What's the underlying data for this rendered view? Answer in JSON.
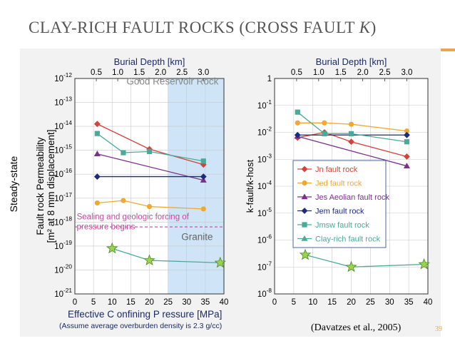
{
  "slide": {
    "title": "CLAY-RICH FAULT ROCKS (CROSS FAULT ",
    "title_italic": "K",
    "title_end": ")",
    "side_label": "Steady-state",
    "citation": "(Davatzes et al., 2005)",
    "slide_number": "39"
  },
  "chart_data": [
    {
      "type": "line",
      "title": "",
      "xlabel": "Effective C onfining P ressure [MPa]",
      "xlabel_note": "(Assume average overburden density is 2.3 g/cc)",
      "ylabel_line1": "Fault rock Permeability",
      "ylabel_line2": "[m² at 8 mm displacement]",
      "top_axis_label": "Burial Depth [km]",
      "top_ticks": [
        "0.5",
        "1.0",
        "1.5",
        "2.0",
        "2.5",
        "3.0"
      ],
      "top_tick_values": [
        0.5,
        1.0,
        1.5,
        2.0,
        2.5,
        3.0
      ],
      "top_axis_mpa_per_km": 11.5,
      "xlim": [
        0,
        40
      ],
      "x_ticks": [
        "0",
        "5",
        "10",
        "15",
        "20",
        "25",
        "30",
        "35",
        "40"
      ],
      "ylim_exp": [
        -21,
        -12
      ],
      "y_ticks_exp": [
        "-12",
        "-13",
        "-14",
        "-15",
        "-16",
        "-17",
        "-18",
        "-19",
        "-20",
        "-21"
      ],
      "scale": "log",
      "shaded_region": {
        "x_from": 25,
        "x_to": 40,
        "color": "#cfe5f7"
      },
      "annotations": [
        {
          "text": "Good Reservoir Rock",
          "color": "#888888"
        },
        {
          "text": "Sealing and geologic forcing of",
          "color": "#c04c9c"
        },
        {
          "text": "pressure begins",
          "color": "#c04c9c"
        },
        {
          "text": "Granite",
          "color": "#666666"
        }
      ],
      "sealing_line_exp": -18.2,
      "series": [
        {
          "name": "Jn",
          "color": "#d9403a",
          "marker": "diamond",
          "x": [
            6,
            20,
            34.5
          ],
          "y_exp": [
            -13.9,
            -14.95,
            -15.6
          ]
        },
        {
          "name": "Jed",
          "color": "#f0a830",
          "marker": "circle",
          "x": [
            6,
            13,
            20,
            34.5
          ],
          "y_exp": [
            -17.2,
            -17.1,
            -17.35,
            -17.45
          ]
        },
        {
          "name": "Jes Aeolian",
          "color": "#7c2f8c",
          "marker": "triangle",
          "x": [
            6,
            34.5
          ],
          "y_exp": [
            -15.15,
            -16.25
          ]
        },
        {
          "name": "Jem",
          "color": "#1f2a7a",
          "marker": "diamond",
          "x": [
            6,
            34.5
          ],
          "y_exp": [
            -16.1,
            -16.1
          ]
        },
        {
          "name": "Jmsw",
          "color": "#4aaa98",
          "marker": "square",
          "x": [
            6,
            13,
            20,
            34.5
          ],
          "y_exp": [
            -14.3,
            -15.1,
            -15.05,
            -15.45
          ]
        },
        {
          "name": "Clay-rich",
          "color": "#4aaa98",
          "marker": "star",
          "marker_color": "#9bd44a",
          "x": [
            10,
            20,
            39
          ],
          "y_exp": [
            -19.1,
            -19.6,
            -19.7
          ]
        }
      ]
    },
    {
      "type": "line",
      "title": "",
      "xlabel": "",
      "ylabel": "k-fault/k-host",
      "top_axis_label": "Burial Depth [km]",
      "top_ticks": [
        "0.5",
        "1.0",
        "1.5",
        "2.0",
        "2.5",
        "3.0"
      ],
      "top_tick_values": [
        0.5,
        1.0,
        1.5,
        2.0,
        2.5,
        3.0
      ],
      "top_axis_mpa_per_km": 11.5,
      "xlim": [
        0,
        40
      ],
      "x_ticks": [
        "0",
        "5",
        "10",
        "15",
        "20",
        "25",
        "30",
        "35",
        "40"
      ],
      "ylim_exp": [
        -8,
        0
      ],
      "y_tick_labels": [
        {
          "exp": 0,
          "base": "1",
          "sup": ""
        },
        {
          "exp": -1,
          "base": "10",
          "sup": "-1"
        },
        {
          "exp": -2,
          "base": "10",
          "sup": "-2"
        },
        {
          "exp": -3,
          "base": "10",
          "sup": "-3"
        },
        {
          "exp": -4,
          "base": "10",
          "sup": "-4"
        },
        {
          "exp": -5,
          "base": "10",
          "sup": "-5"
        },
        {
          "exp": -6,
          "base": "10",
          "sup": "-6"
        },
        {
          "exp": -7,
          "base": "10",
          "sup": "-7"
        },
        {
          "exp": -8,
          "base": "10",
          "sup": "-8"
        }
      ],
      "scale": "log",
      "legend_position": "center-right",
      "series": [
        {
          "name": "Jn fault rock",
          "color": "#d9403a",
          "marker": "diamond",
          "x": [
            6,
            13,
            20,
            34.5
          ],
          "y_exp": [
            -2.2,
            -2.0,
            -2.35,
            -2.9
          ]
        },
        {
          "name": "Jed fault rock",
          "color": "#f0a830",
          "marker": "circle",
          "x": [
            6,
            13,
            20,
            34.5
          ],
          "y_exp": [
            -1.65,
            -1.65,
            -1.7,
            -1.95
          ]
        },
        {
          "name": "Jes Aeolian fault rock",
          "color": "#7c2f8c",
          "marker": "triangle",
          "x": [
            6,
            34.5
          ],
          "y_exp": [
            -2.15,
            -3.25
          ]
        },
        {
          "name": "Jem fault rock",
          "color": "#1f2a7a",
          "marker": "diamond",
          "x": [
            6,
            34.5
          ],
          "y_exp": [
            -2.1,
            -2.1
          ]
        },
        {
          "name": "Jmsw  fault rock",
          "color": "#4aaa98",
          "marker": "square",
          "x": [
            6,
            13,
            20,
            34.5
          ],
          "y_exp": [
            -1.25,
            -2.05,
            -2.05,
            -2.35
          ]
        },
        {
          "name": "Clay-rich fault rock",
          "color": "#4aaa98",
          "marker": "star",
          "marker_color": "#9bd44a",
          "x": [
            8,
            20,
            39
          ],
          "y_exp": [
            -6.55,
            -7.0,
            -6.9
          ]
        }
      ]
    }
  ]
}
